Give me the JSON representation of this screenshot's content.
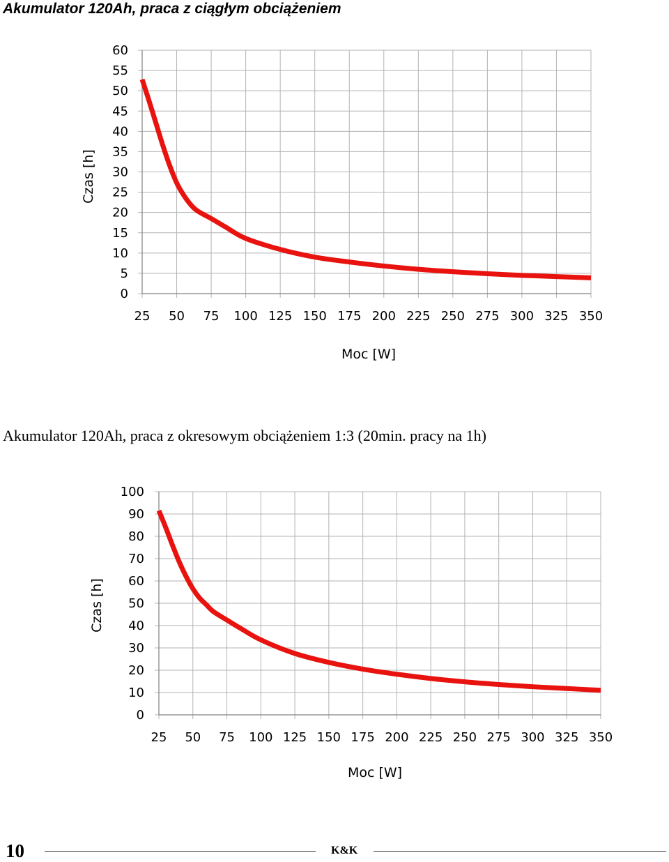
{
  "charts_titles": {
    "chart1": "Akumulator 120Ah, praca z ciągłym obciążeniem",
    "chart2": "Akumulator 120Ah, praca z okresowym obciążeniem 1:3 (20min. pracy na 1h)"
  },
  "footer": {
    "page_number": "10",
    "brand": "K&K"
  },
  "colors": {
    "curve": "#e8130f",
    "grid": "#b3b3b3",
    "axis": "#808080"
  },
  "chart_data": [
    {
      "type": "line",
      "title": "Akumulator 120Ah, praca z ciągłym obciążeniem",
      "xlabel": "Moc [W]",
      "ylabel": "Czas [h]",
      "xlim": [
        25,
        350
      ],
      "ylim": [
        0,
        60
      ],
      "x_ticks": [
        "25",
        "50",
        "75",
        "100",
        "125",
        "150",
        "175",
        "200",
        "225",
        "250",
        "275",
        "300",
        "325",
        "350"
      ],
      "y_ticks": [
        "0",
        "5",
        "10",
        "15",
        "20",
        "25",
        "30",
        "35",
        "40",
        "45",
        "50",
        "55",
        "60"
      ],
      "grid": true,
      "series": [
        {
          "x": [
            25,
            30,
            35,
            40,
            45,
            50,
            55,
            60,
            65,
            75,
            85,
            100,
            125,
            150,
            175,
            200,
            225,
            250,
            275,
            300,
            325,
            350
          ],
          "values": [
            52.8,
            47.5,
            42,
            36.5,
            31.5,
            27.3,
            24.3,
            22,
            20.4,
            18.5,
            16.5,
            13.6,
            10.9,
            9,
            7.8,
            6.8,
            6,
            5.4,
            4.9,
            4.5,
            4.2,
            3.9
          ]
        }
      ]
    },
    {
      "type": "line",
      "title": "Akumulator 120Ah, praca z okresowym obciążeniem 1:3 (20min. pracy na 1h)",
      "xlabel": "Moc [W]",
      "ylabel": "Czas [h]",
      "xlim": [
        25,
        350
      ],
      "ylim": [
        0,
        100
      ],
      "x_ticks": [
        "25",
        "50",
        "75",
        "100",
        "125",
        "150",
        "175",
        "200",
        "225",
        "250",
        "275",
        "300",
        "325",
        "350"
      ],
      "y_ticks": [
        "0",
        "10",
        "20",
        "30",
        "40",
        "50",
        "60",
        "70",
        "80",
        "90",
        "100"
      ],
      "grid": true,
      "series": [
        {
          "x": [
            25,
            30,
            35,
            40,
            45,
            50,
            55,
            60,
            65,
            75,
            85,
            100,
            125,
            150,
            175,
            200,
            225,
            250,
            275,
            300,
            325,
            350
          ],
          "values": [
            91.5,
            84,
            76,
            68.5,
            62,
            56.5,
            52.3,
            49.3,
            46.3,
            42.5,
            38.8,
            33.6,
            27.5,
            23.5,
            20.5,
            18.2,
            16.3,
            14.8,
            13.6,
            12.6,
            11.8,
            11
          ]
        }
      ]
    }
  ]
}
